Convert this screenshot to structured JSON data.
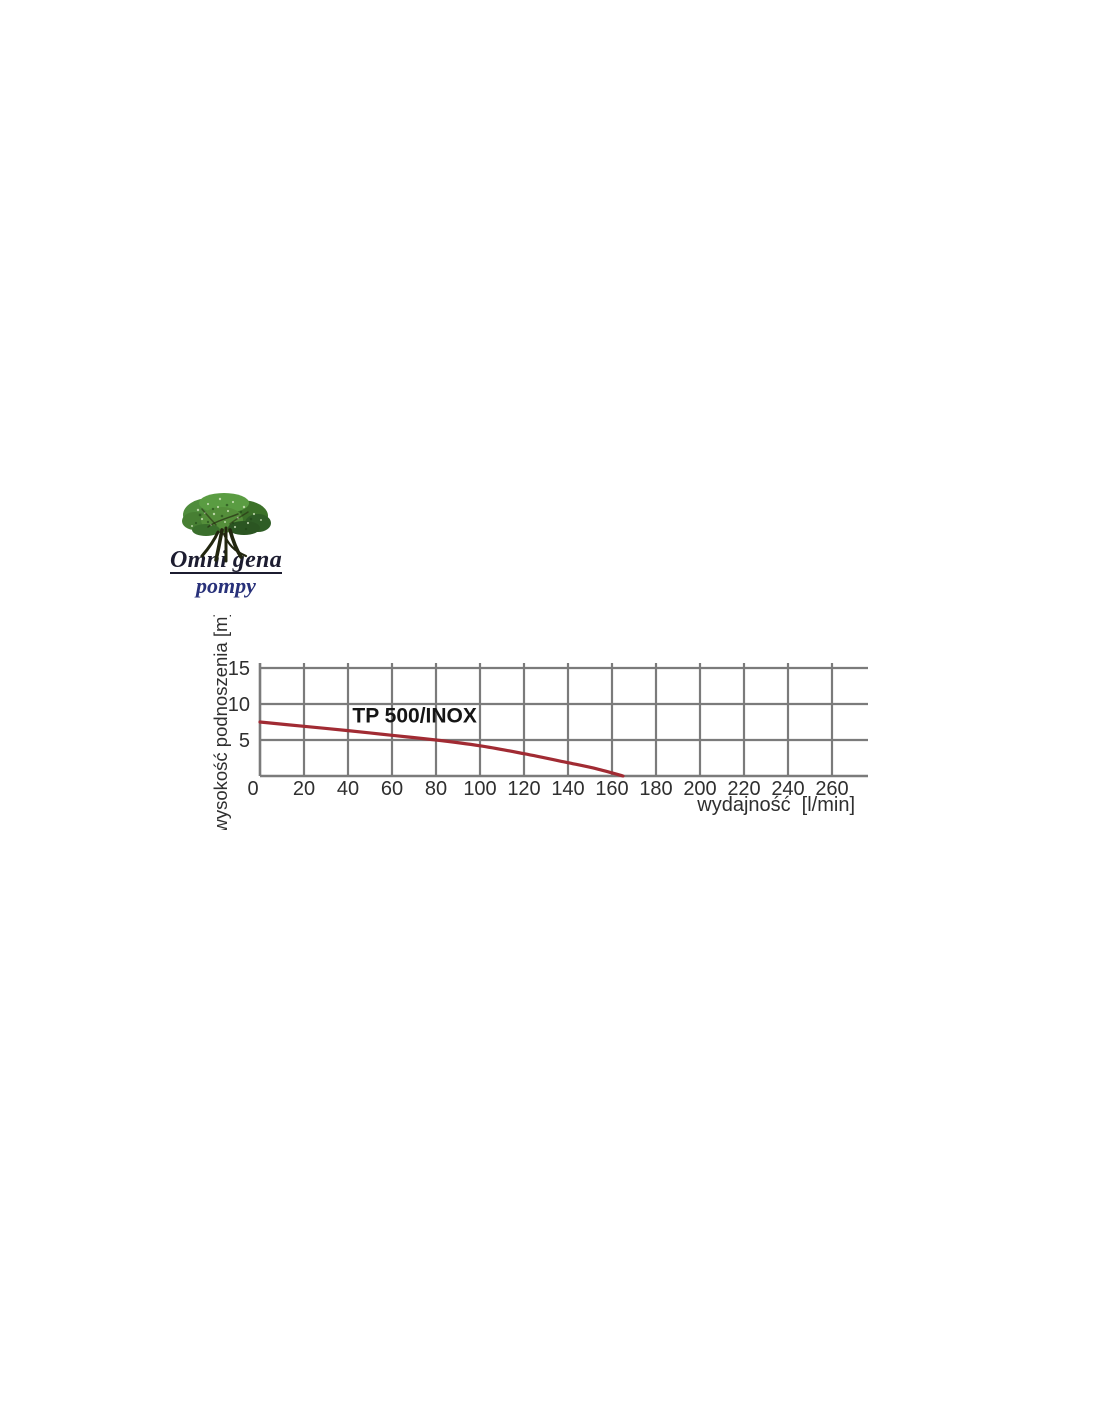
{
  "page": {
    "background": "#ffffff"
  },
  "logo": {
    "word1": "Omni",
    "word2": "gena",
    "subtitle": "pompy",
    "text_color": "#1c1c30",
    "subtitle_color": "#28317a"
  },
  "chart_data": {
    "type": "line",
    "title": "",
    "series": [
      {
        "name": "TP 500/INOX",
        "color": "#a12b33",
        "points": [
          [
            0,
            7.5
          ],
          [
            20,
            6.9
          ],
          [
            40,
            6.3
          ],
          [
            60,
            5.65
          ],
          [
            80,
            5.0
          ],
          [
            100,
            4.2
          ],
          [
            120,
            3.1
          ],
          [
            140,
            1.85
          ],
          [
            153,
            1.0
          ],
          [
            165,
            0
          ]
        ]
      }
    ],
    "annotation": {
      "text": "TP 500/INOX",
      "x": 42,
      "y": 7.4
    },
    "xlabel": "wydajność [l/min]",
    "ylabel": "wysokość podnoszenia [m]",
    "x_ticks": [
      0,
      20,
      40,
      60,
      80,
      100,
      120,
      140,
      160,
      180,
      200,
      220,
      240,
      260
    ],
    "y_ticks": [
      5,
      10,
      15
    ],
    "xlim": [
      0,
      276
    ],
    "ylim": [
      0,
      15.7
    ],
    "grid": true,
    "legend": "none",
    "grid_color": "#7b7b7b",
    "text_color": "#2f2f2f"
  }
}
